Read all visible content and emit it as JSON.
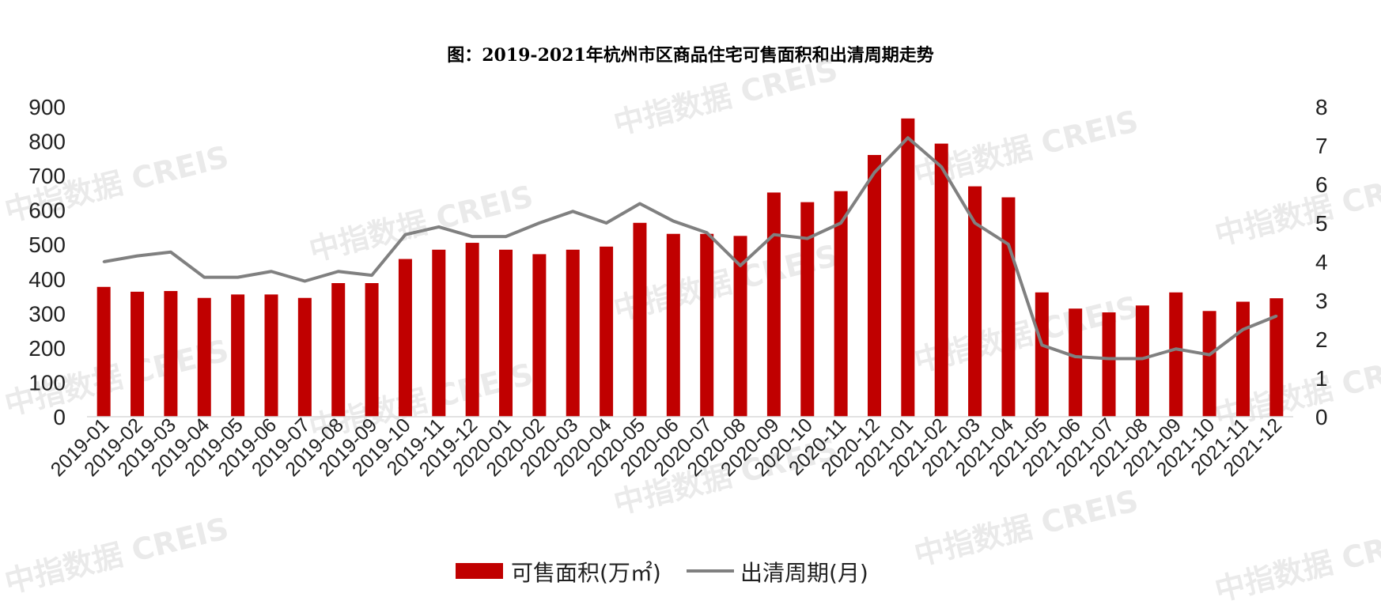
{
  "title": "图：2019-2021年杭州市区商品住宅可售面积和出清周期走势",
  "watermark": "中指数据 CREIS",
  "chart_data": {
    "type": "bar+line",
    "categories": [
      "2019-01",
      "2019-02",
      "2019-03",
      "2019-04",
      "2019-05",
      "2019-06",
      "2019-07",
      "2019-08",
      "2019-09",
      "2019-10",
      "2019-11",
      "2019-12",
      "2020-01",
      "2020-02",
      "2020-03",
      "2020-04",
      "2020-05",
      "2020-06",
      "2020-07",
      "2020-08",
      "2020-09",
      "2020-10",
      "2020-11",
      "2020-12",
      "2021-01",
      "2021-02",
      "2021-03",
      "2021-04",
      "2021-05",
      "2021-06",
      "2021-07",
      "2021-08",
      "2021-09",
      "2021-10",
      "2021-11",
      "2021-12"
    ],
    "series": [
      {
        "name": "可售面积(万㎡)",
        "type": "bar",
        "axis": "left",
        "color": "#c00000",
        "values": [
          377,
          363,
          365,
          345,
          355,
          355,
          345,
          388,
          388,
          458,
          485,
          505,
          485,
          472,
          485,
          494,
          563,
          531,
          531,
          525,
          651,
          623,
          655,
          760,
          866,
          793,
          669,
          637,
          361,
          314,
          303,
          323,
          361,
          307,
          334,
          344
        ]
      },
      {
        "name": "出清周期(月)",
        "type": "line",
        "axis": "right",
        "color": "#808080",
        "values": [
          4.0,
          4.15,
          4.25,
          3.6,
          3.6,
          3.75,
          3.5,
          3.75,
          3.65,
          4.7,
          4.9,
          4.65,
          4.65,
          5.0,
          5.3,
          5.0,
          5.5,
          5.05,
          4.75,
          3.9,
          4.7,
          4.6,
          5.0,
          6.3,
          7.2,
          6.45,
          5.0,
          4.45,
          1.85,
          1.55,
          1.5,
          1.5,
          1.75,
          1.6,
          2.25,
          2.6
        ]
      }
    ],
    "y_left": {
      "ylim": [
        0,
        900
      ],
      "ticks": [
        0,
        100,
        200,
        300,
        400,
        500,
        600,
        700,
        800,
        900
      ]
    },
    "y_right": {
      "ylim": [
        0,
        8
      ],
      "ticks": [
        0,
        1,
        2,
        3,
        4,
        5,
        6,
        7,
        8
      ]
    },
    "legend": "bottom-center",
    "grid": false
  }
}
